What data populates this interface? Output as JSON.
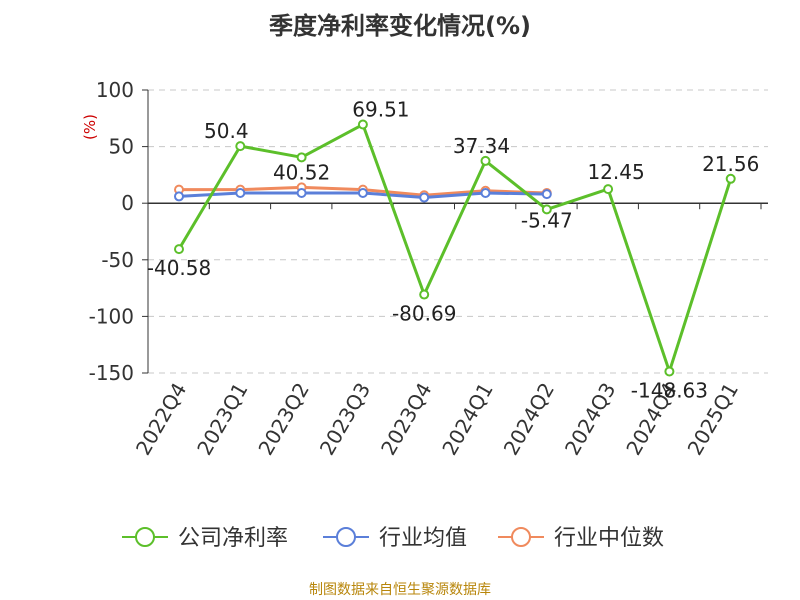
{
  "title": "季度净利率变化情况(%)",
  "source": "制图数据来自恒生聚源数据库",
  "chart_data": {
    "type": "line",
    "title": "季度净利率变化情况(%)",
    "ylabel": "(%)",
    "ylabel_color": "#cc0000",
    "ylim": [
      -150,
      100
    ],
    "yticks": [
      100,
      50,
      0,
      -50,
      -100,
      -150
    ],
    "grid": true,
    "legend_position": "bottom",
    "categories": [
      "2022Q4",
      "2023Q1",
      "2023Q2",
      "2023Q3",
      "2023Q4",
      "2024Q1",
      "2024Q2",
      "2024Q3",
      "2024Q4",
      "2025Q1"
    ],
    "series": [
      {
        "name": "公司净利率",
        "color": "#5cbf2a",
        "values": [
          -40.58,
          50.4,
          40.52,
          69.51,
          -80.69,
          37.34,
          -5.47,
          12.45,
          -148.63,
          21.56
        ],
        "labels": [
          "-40.58",
          "50.4",
          "40.52",
          "69.51",
          "-80.69",
          "37.34",
          "-5.47",
          "12.45",
          "-148.63",
          "21.56"
        ]
      },
      {
        "name": "行业均值",
        "color": "#5b7fd9",
        "values": [
          6,
          9,
          9,
          9,
          5,
          9,
          8,
          null,
          null,
          null
        ]
      },
      {
        "name": "行业中位数",
        "color": "#f08a5d",
        "values": [
          12,
          12,
          14,
          12,
          7,
          11,
          9,
          null,
          null,
          null
        ]
      }
    ]
  }
}
